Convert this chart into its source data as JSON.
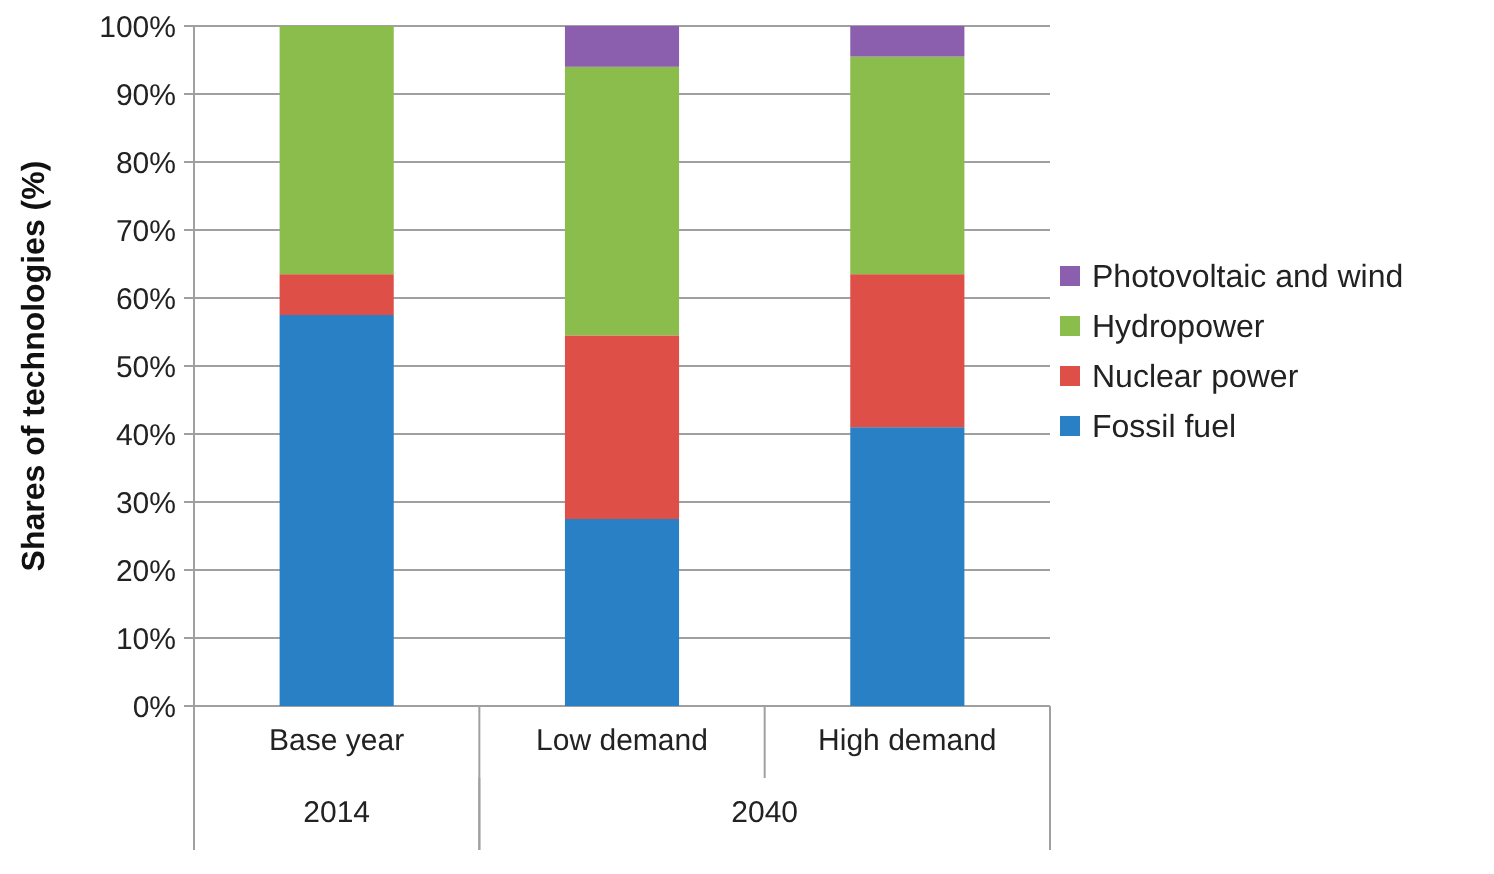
{
  "chart_data": {
    "type": "bar",
    "stacked": true,
    "ylabel": "Shares of technologies (%)",
    "categories": [
      "Base year",
      "Low demand",
      "High demand"
    ],
    "series": [
      {
        "name": "Fossil fuel",
        "color": "#2a80c4",
        "values": [
          57.5,
          27.5,
          41
        ]
      },
      {
        "name": "Nuclear power",
        "color": "#de4f48",
        "values": [
          6,
          27,
          22.5
        ]
      },
      {
        "name": "Hydropower",
        "color": "#8bbd4c",
        "values": [
          36.5,
          39.5,
          32
        ]
      },
      {
        "name": "Photovoltaic and wind",
        "color": "#8c5fae",
        "values": [
          0,
          6,
          4.5
        ]
      }
    ],
    "ylim": [
      0,
      100
    ],
    "yticks": [
      {
        "value": 0,
        "label": "0%"
      },
      {
        "value": 10,
        "label": "10%"
      },
      {
        "value": 20,
        "label": "20%"
      },
      {
        "value": 30,
        "label": "30%"
      },
      {
        "value": 40,
        "label": "40%"
      },
      {
        "value": 50,
        "label": "50%"
      },
      {
        "value": 60,
        "label": "60%"
      },
      {
        "value": 70,
        "label": "70%"
      },
      {
        "value": 80,
        "label": "80%"
      },
      {
        "value": 90,
        "label": "90%"
      },
      {
        "value": 100,
        "label": "100%"
      }
    ],
    "grid": "y",
    "legend": "right",
    "annotations": [
      "2014",
      "2040"
    ]
  }
}
